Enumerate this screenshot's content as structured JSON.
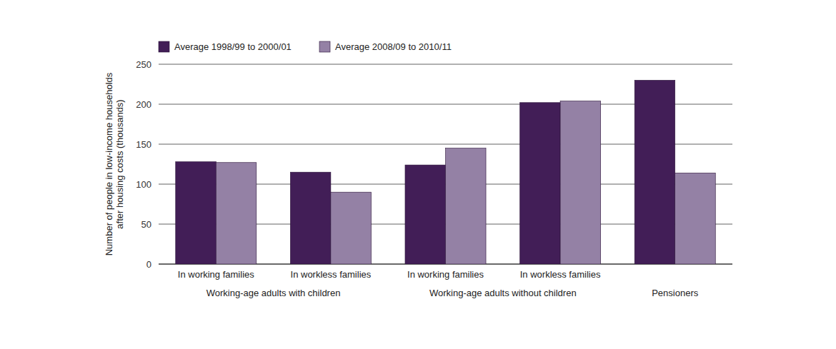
{
  "chart_data": {
    "type": "bar",
    "y_label": "Number of people in low-income households after housing costs (thousands)",
    "categories": [
      "In working families",
      "In workless families",
      "In working families",
      "In workless families",
      null
    ],
    "category_groups": [
      "Working-age adults with children",
      "Working-age adults with children",
      "Working-age adults without children",
      "Working-age adults without children",
      "Pensioners"
    ],
    "series": [
      {
        "name": "Average 1998/99 to 2000/01",
        "color": "#421e57",
        "values": [
          128,
          115,
          124,
          202,
          230
        ]
      },
      {
        "name": "Average 2008/09 to 2010/11",
        "color": "#9481a5",
        "values": [
          127,
          90,
          145,
          204,
          114
        ]
      }
    ],
    "ylim": [
      0,
      250
    ],
    "yticks": [
      0,
      50,
      100,
      150,
      200,
      250
    ],
    "grid": true,
    "legend": "top-left"
  }
}
